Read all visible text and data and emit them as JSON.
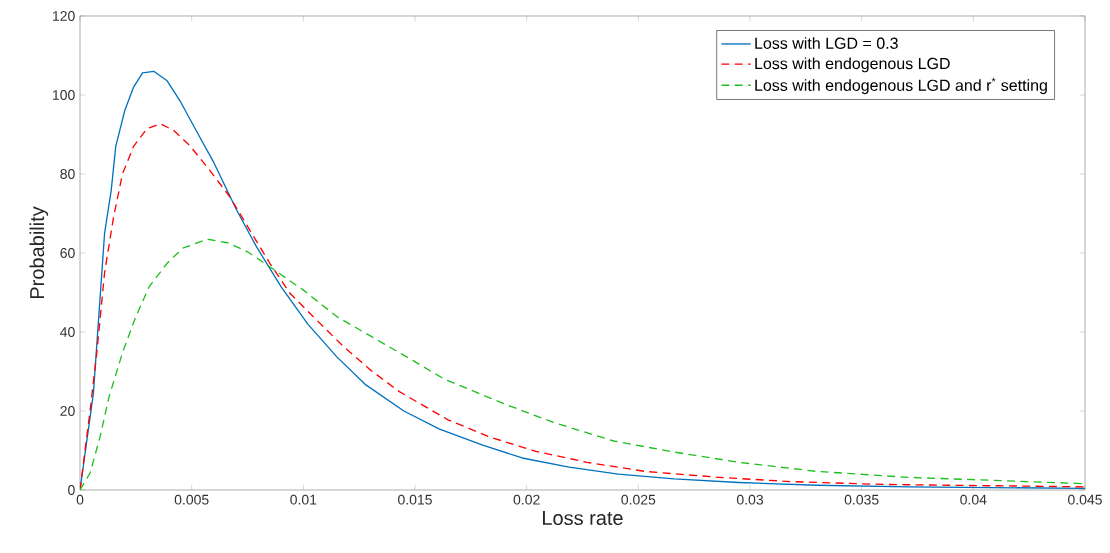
{
  "chart_data": {
    "type": "line",
    "xlabel": "Loss rate",
    "ylabel": "Probability",
    "xlim": [
      0,
      0.045
    ],
    "ylim": [
      0,
      120
    ],
    "xticks": [
      0,
      0.005,
      0.01,
      0.015,
      0.02,
      0.025,
      0.03,
      0.035,
      0.04,
      0.045
    ],
    "yticks": [
      0,
      20,
      40,
      60,
      80,
      100,
      120
    ],
    "grid": false,
    "legend": "top right",
    "series": [
      {
        "name": "Loss with LGD = 0.3",
        "color": "#0072bd",
        "line_style": "solid",
        "x": [
          0,
          0.0006,
          0.0011,
          0.0014,
          0.0016,
          0.002,
          0.0024,
          0.0028,
          0.0033,
          0.0039,
          0.0045,
          0.0052,
          0.006,
          0.007,
          0.0079,
          0.009,
          0.0102,
          0.0115,
          0.0128,
          0.0145,
          0.0161,
          0.018,
          0.0198,
          0.0219,
          0.0241,
          0.0266,
          0.0295,
          0.033,
          0.0371,
          0.045
        ],
        "values": [
          0,
          24.5,
          65,
          76,
          87,
          96,
          102,
          105.6,
          106,
          103.6,
          98.3,
          91,
          82.8,
          71,
          61.6,
          51.5,
          42,
          33.7,
          26.6,
          20,
          15.4,
          11.4,
          8.1,
          5.8,
          4,
          2.8,
          1.9,
          1.2,
          0.8,
          0.4
        ]
      },
      {
        "name": "Loss with endogenous LGD",
        "color": "#ff0000",
        "line_style": "dashed",
        "x": [
          0,
          0.00045,
          0.00075,
          0.0011,
          0.0015,
          0.0019,
          0.0024,
          0.003,
          0.0036,
          0.0042,
          0.0049,
          0.0058,
          0.0067,
          0.0076,
          0.0085,
          0.0094,
          0.0106,
          0.0118,
          0.013,
          0.0143,
          0.0165,
          0.0184,
          0.0204,
          0.0227,
          0.0253,
          0.0286,
          0.0319,
          0.036,
          0.045
        ],
        "values": [
          0,
          20,
          34.7,
          55,
          69,
          80,
          87,
          91.5,
          92.7,
          91,
          87.3,
          81,
          74.3,
          65.8,
          57.4,
          49.8,
          43,
          36.3,
          30.4,
          24.9,
          17.7,
          13.3,
          9.8,
          7,
          4.7,
          3.2,
          2.1,
          1.4,
          0.8
        ]
      },
      {
        "name": "Loss with endogenous LGD and r$^{*}$ setting",
        "color": "#1fbf1f",
        "line_style": "dashed",
        "x": [
          0,
          0.00045,
          0.0009,
          0.0013,
          0.0019,
          0.0025,
          0.0031,
          0.0039,
          0.0046,
          0.0057,
          0.0066,
          0.0075,
          0.0085,
          0.01,
          0.0115,
          0.013,
          0.0149,
          0.0163,
          0.019,
          0.0212,
          0.0239,
          0.0266,
          0.0295,
          0.033,
          0.0371,
          0.045
        ],
        "values": [
          0,
          4.3,
          13.5,
          23.6,
          34.7,
          43.9,
          51.5,
          57.4,
          61.2,
          63.5,
          62.6,
          60.3,
          56.5,
          50.6,
          43.9,
          39,
          32.8,
          28.1,
          21.8,
          17.1,
          12.4,
          9.6,
          7,
          4.7,
          3.2,
          1.6
        ]
      }
    ]
  }
}
